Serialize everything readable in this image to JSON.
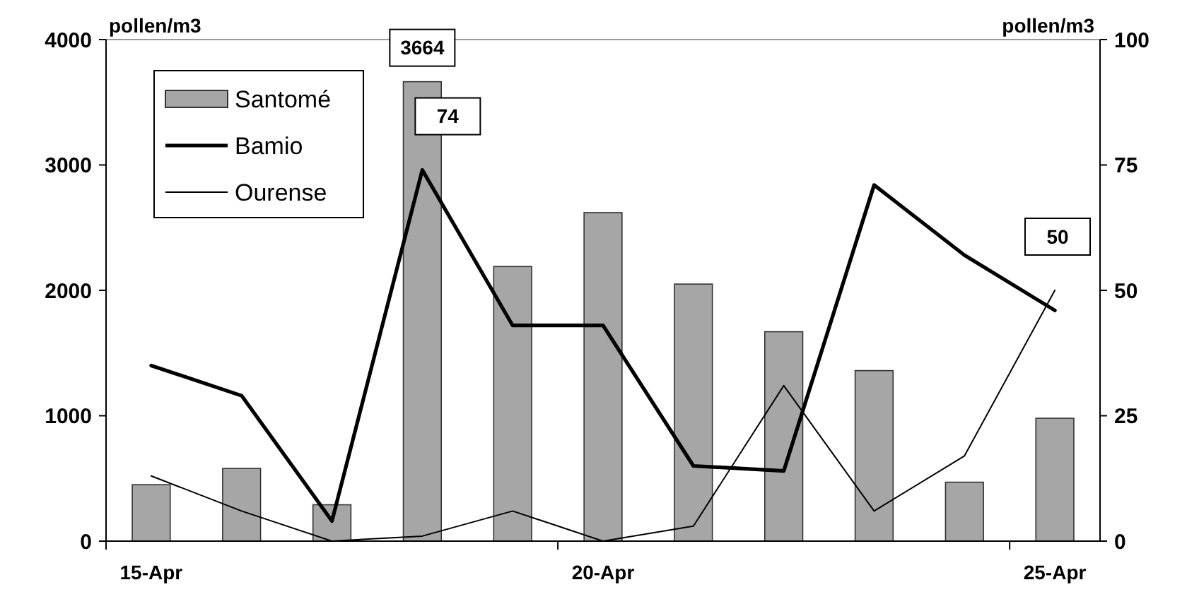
{
  "chart_data": {
    "type": "bar",
    "ylabel": "pollen/m3",
    "y2label": "pollen/m3",
    "categories": [
      "15-Apr",
      null,
      null,
      null,
      null,
      "20-Apr",
      null,
      null,
      null,
      null,
      "25-Apr"
    ],
    "ylim": [
      0,
      4000
    ],
    "yticks": [
      0,
      1000,
      2000,
      3000,
      4000
    ],
    "y2lim": [
      0,
      100
    ],
    "y2ticks": [
      0,
      25,
      50,
      75,
      100
    ],
    "grid": false,
    "legend": "top left",
    "series": [
      {
        "name": "Santomé",
        "color": "#a6a6a6",
        "values": [
          450,
          580,
          290,
          3664,
          2190,
          2620,
          2050,
          1670,
          1360,
          470,
          980
        ],
        "value_labels": [
          null,
          null,
          null,
          "3664",
          null,
          null,
          null,
          null,
          null,
          null,
          null
        ]
      },
      {
        "name": "Bamio",
        "type": "line",
        "axis": "y2",
        "color": "#000000",
        "values": [
          35,
          29,
          4,
          74,
          43,
          43,
          15,
          14,
          71,
          57,
          46
        ],
        "value_labels": [
          null,
          null,
          null,
          "74",
          null,
          null,
          null,
          null,
          null,
          null,
          null
        ]
      },
      {
        "name": "Ourense",
        "type": "line",
        "axis": "y2",
        "color": "#000000",
        "values": [
          13,
          6,
          0,
          1,
          6,
          0,
          3,
          31,
          6,
          17,
          50
        ],
        "value_labels": [
          null,
          null,
          null,
          null,
          null,
          null,
          null,
          null,
          null,
          null,
          "50"
        ]
      }
    ]
  }
}
